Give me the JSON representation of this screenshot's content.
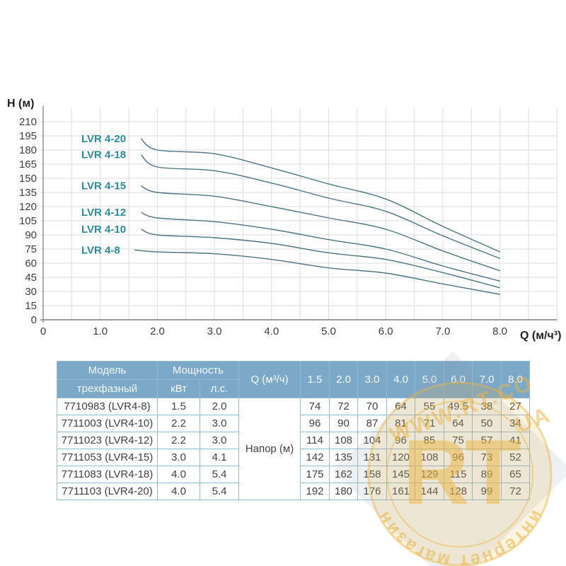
{
  "chart_data": {
    "type": "line",
    "title": "",
    "xlabel": "Q (м/ч³)",
    "ylabel": "H (м)",
    "x": [
      1.5,
      2.0,
      3.0,
      4.0,
      5.0,
      6.0,
      7.0,
      8.0
    ],
    "series": [
      {
        "name": "LVR 4-20",
        "values": [
          192,
          180,
          176,
          161,
          144,
          128,
          99,
          72
        ]
      },
      {
        "name": "LVR 4-18",
        "values": [
          175,
          162,
          158,
          145,
          129,
          115,
          89,
          65
        ]
      },
      {
        "name": "LVR 4-15",
        "values": [
          142,
          135,
          131,
          120,
          108,
          96,
          73,
          52
        ]
      },
      {
        "name": "LVR 4-12",
        "values": [
          114,
          108,
          104,
          96,
          85,
          75,
          57,
          41
        ]
      },
      {
        "name": "LVR 4-10",
        "values": [
          96,
          90,
          87,
          81,
          71,
          64,
          50,
          34
        ]
      },
      {
        "name": "LVR 4-8",
        "values": [
          74,
          72,
          70,
          64,
          55,
          49.5,
          38,
          27
        ]
      }
    ],
    "x_tick_labels": [
      "0",
      "1.0",
      "2.0",
      "3.0",
      "4.0",
      "5.0",
      "6.0",
      "7.0",
      "8.0"
    ],
    "y_ticks": [
      0,
      15,
      30,
      45,
      60,
      75,
      90,
      105,
      120,
      135,
      150,
      165,
      180,
      195,
      210
    ],
    "xlim": [
      0,
      9
    ],
    "ylim": [
      0,
      225
    ],
    "grid": true,
    "grid_step_x": 0.5,
    "legend_position": "inline-left"
  },
  "table": {
    "model_header": "Модель",
    "phase_header": "трехфазный",
    "power_header": "Мощность",
    "kw_header": "кВт",
    "hp_header": "л.с.",
    "q_header": "Q (м³/ч)",
    "flow_cols": [
      "1.5",
      "2.0",
      "3.0",
      "4.0",
      "5.0",
      "6.0",
      "7.0",
      "8.0"
    ],
    "merged_label": "Напор (м)",
    "rows": [
      {
        "model": "7710983 (LVR4-8)",
        "kw": "1.5",
        "hp": "2.0",
        "values": [
          "74",
          "72",
          "70",
          "64",
          "55",
          "49.5",
          "38",
          "27"
        ]
      },
      {
        "model": "7711003 (LVR4-10)",
        "kw": "2.2",
        "hp": "3.0",
        "values": [
          "96",
          "90",
          "87",
          "81",
          "71",
          "64",
          "50",
          "34"
        ]
      },
      {
        "model": "7711023 (LVR4-12)",
        "kw": "2.2",
        "hp": "3.0",
        "values": [
          "114",
          "108",
          "104",
          "96",
          "85",
          "75",
          "57",
          "41"
        ]
      },
      {
        "model": "7711053 (LVR4-15)",
        "kw": "3.0",
        "hp": "4.1",
        "values": [
          "142",
          "135",
          "131",
          "120",
          "108",
          "96",
          "73",
          "52"
        ]
      },
      {
        "model": "7711083 (LVR4-18)",
        "kw": "4.0",
        "hp": "5.4",
        "values": [
          "175",
          "162",
          "158",
          "145",
          "129",
          "115",
          "89",
          "65"
        ]
      },
      {
        "model": "7711103 (LVR4-20)",
        "kw": "4.0",
        "hp": "5.4",
        "values": [
          "192",
          "180",
          "176",
          "161",
          "144",
          "128",
          "99",
          "72"
        ]
      }
    ]
  },
  "watermark": {
    "diagonal_text_line1": "WWW.RT.CO",
    "diagonal_text_line2": "UA",
    "stamp_center_text": "RT",
    "stamp_ring_text": "интернет магазин"
  },
  "colors": {
    "curve": "#4d7482",
    "series_label": "#2b8a9e",
    "grid": "#dcdcdc",
    "axis": "#8c8c8c",
    "tick_text": "#3d3d3d",
    "header_bg": "#7da9c9",
    "header_text": "#f4f8fb",
    "table_border": "#96b9cf",
    "cell_text": "#3f3f3f",
    "wm_yellow": "#eab440",
    "wm_gray": "#8a97a3"
  }
}
